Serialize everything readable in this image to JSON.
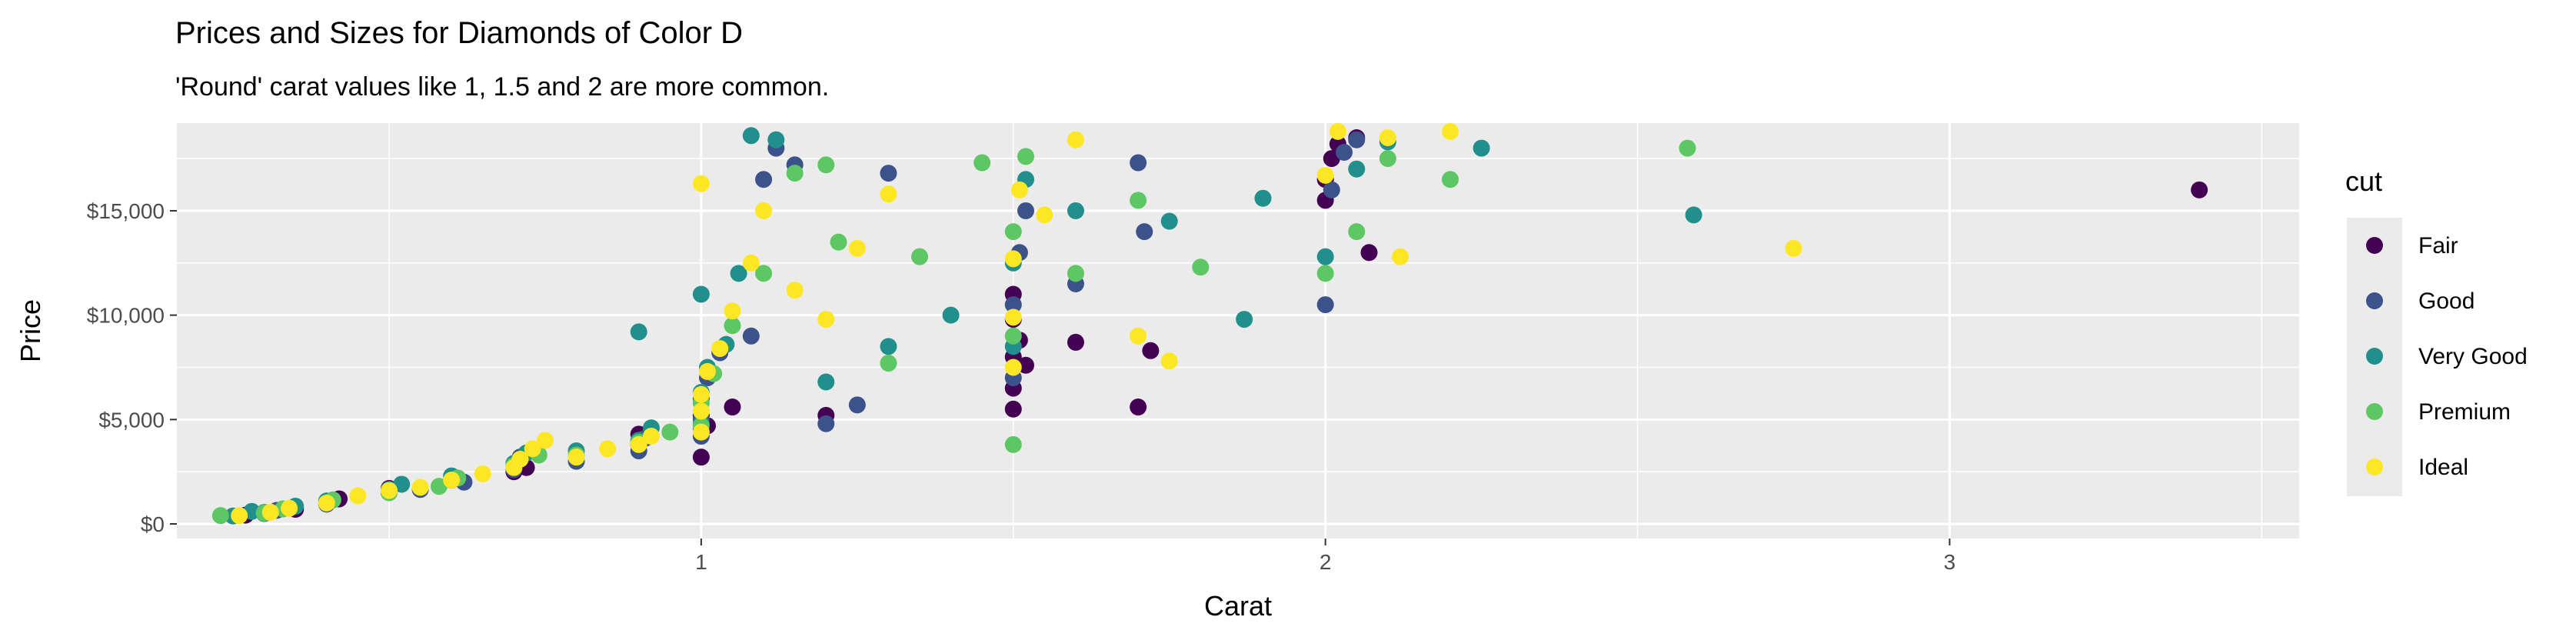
{
  "chart_data": {
    "type": "scatter",
    "title": "Prices and Sizes for Diamonds of Color D",
    "subtitle": "'Round' carat values like 1, 1.5 and 2 are more common.",
    "xlabel": "Carat",
    "ylabel": "Price",
    "xlim": [
      0.16,
      3.56
    ],
    "ylim": [
      -700,
      19200
    ],
    "x_ticks": [
      1,
      2,
      3
    ],
    "x_tick_labels": [
      "1",
      "2",
      "3"
    ],
    "y_ticks": [
      0,
      5000,
      10000,
      15000
    ],
    "y_tick_labels": [
      "$0",
      "$5,000",
      "$10,000",
      "$15,000"
    ],
    "grid": true,
    "legend": {
      "title": "cut",
      "position": "right",
      "items": [
        "Fair",
        "Good",
        "Very Good",
        "Premium",
        "Ideal"
      ]
    },
    "colors": {
      "Fair": "#440154",
      "Good": "#3B528B",
      "Very Good": "#21908C",
      "Premium": "#5DC863",
      "Ideal": "#FDE725"
    },
    "series": [
      {
        "name": "Fair",
        "points": [
          [
            0.27,
            420
          ],
          [
            0.35,
            700
          ],
          [
            0.42,
            1200
          ],
          [
            0.5,
            1700
          ],
          [
            0.6,
            2100
          ],
          [
            0.7,
            2500
          ],
          [
            0.71,
            3000
          ],
          [
            0.72,
            2700
          ],
          [
            0.9,
            3800
          ],
          [
            0.9,
            4300
          ],
          [
            1.0,
            3200
          ],
          [
            1.0,
            4500
          ],
          [
            1.0,
            5200
          ],
          [
            1.01,
            4700
          ],
          [
            1.05,
            5600
          ],
          [
            1.2,
            5200
          ],
          [
            1.5,
            5500
          ],
          [
            1.5,
            6500
          ],
          [
            1.5,
            8000
          ],
          [
            1.51,
            8800
          ],
          [
            1.52,
            7600
          ],
          [
            1.5,
            9800
          ],
          [
            1.5,
            11000
          ],
          [
            1.6,
            8700
          ],
          [
            1.7,
            5600
          ],
          [
            1.72,
            8300
          ],
          [
            2.0,
            15500
          ],
          [
            2.0,
            16500
          ],
          [
            2.01,
            17500
          ],
          [
            2.02,
            18200
          ],
          [
            2.07,
            13000
          ],
          [
            2.05,
            18500
          ],
          [
            3.4,
            16000
          ]
        ]
      },
      {
        "name": "Good",
        "points": [
          [
            0.3,
            500
          ],
          [
            0.32,
            650
          ],
          [
            0.4,
            950
          ],
          [
            0.5,
            1500
          ],
          [
            0.55,
            1650
          ],
          [
            0.62,
            2000
          ],
          [
            0.7,
            2600
          ],
          [
            0.71,
            3200
          ],
          [
            0.8,
            3000
          ],
          [
            0.9,
            3500
          ],
          [
            0.91,
            4100
          ],
          [
            1.0,
            4200
          ],
          [
            1.0,
            5000
          ],
          [
            1.0,
            6000
          ],
          [
            1.01,
            7000
          ],
          [
            1.03,
            8200
          ],
          [
            1.08,
            9000
          ],
          [
            1.1,
            16500
          ],
          [
            1.12,
            18000
          ],
          [
            1.15,
            17200
          ],
          [
            1.2,
            4800
          ],
          [
            1.25,
            5700
          ],
          [
            1.3,
            16800
          ],
          [
            1.5,
            7000
          ],
          [
            1.5,
            10500
          ],
          [
            1.51,
            13000
          ],
          [
            1.52,
            15000
          ],
          [
            1.6,
            11500
          ],
          [
            1.7,
            17300
          ],
          [
            1.71,
            14000
          ],
          [
            2.0,
            10500
          ],
          [
            2.01,
            16000
          ],
          [
            2.03,
            17800
          ],
          [
            2.05,
            18400
          ]
        ]
      },
      {
        "name": "Very Good",
        "points": [
          [
            0.25,
            380
          ],
          [
            0.28,
            600
          ],
          [
            0.3,
            550
          ],
          [
            0.35,
            850
          ],
          [
            0.4,
            1100
          ],
          [
            0.5,
            1650
          ],
          [
            0.52,
            1900
          ],
          [
            0.6,
            2300
          ],
          [
            0.7,
            2900
          ],
          [
            0.72,
            3400
          ],
          [
            0.8,
            3500
          ],
          [
            0.9,
            4000
          ],
          [
            0.9,
            9200
          ],
          [
            0.92,
            4600
          ],
          [
            1.0,
            4800
          ],
          [
            1.0,
            6300
          ],
          [
            1.0,
            11000
          ],
          [
            1.01,
            7500
          ],
          [
            1.04,
            8600
          ],
          [
            1.06,
            12000
          ],
          [
            1.08,
            18600
          ],
          [
            1.12,
            18400
          ],
          [
            1.2,
            6800
          ],
          [
            1.3,
            8500
          ],
          [
            1.4,
            10000
          ],
          [
            1.5,
            8500
          ],
          [
            1.5,
            12500
          ],
          [
            1.52,
            16500
          ],
          [
            1.6,
            15000
          ],
          [
            1.75,
            14500
          ],
          [
            1.87,
            9800
          ],
          [
            1.9,
            15600
          ],
          [
            2.0,
            12800
          ],
          [
            2.05,
            17000
          ],
          [
            2.1,
            18300
          ],
          [
            2.25,
            18000
          ],
          [
            2.59,
            14800
          ]
        ]
      },
      {
        "name": "Premium",
        "points": [
          [
            0.23,
            400
          ],
          [
            0.3,
            520
          ],
          [
            0.33,
            720
          ],
          [
            0.41,
            1150
          ],
          [
            0.5,
            1500
          ],
          [
            0.58,
            1800
          ],
          [
            0.61,
            2200
          ],
          [
            0.7,
            2800
          ],
          [
            0.74,
            3300
          ],
          [
            0.8,
            3300
          ],
          [
            0.9,
            3900
          ],
          [
            0.95,
            4400
          ],
          [
            1.0,
            4700
          ],
          [
            1.0,
            5800
          ],
          [
            1.02,
            7200
          ],
          [
            1.05,
            9500
          ],
          [
            1.1,
            12000
          ],
          [
            1.15,
            16800
          ],
          [
            1.2,
            17200
          ],
          [
            1.22,
            13500
          ],
          [
            1.3,
            7700
          ],
          [
            1.35,
            12800
          ],
          [
            1.45,
            17300
          ],
          [
            1.5,
            3800
          ],
          [
            1.5,
            9000
          ],
          [
            1.5,
            14000
          ],
          [
            1.52,
            17600
          ],
          [
            1.6,
            12000
          ],
          [
            1.7,
            15500
          ],
          [
            1.8,
            12300
          ],
          [
            2.0,
            12000
          ],
          [
            2.05,
            14000
          ],
          [
            2.1,
            17500
          ],
          [
            2.2,
            16500
          ],
          [
            2.58,
            18000
          ]
        ]
      },
      {
        "name": "Ideal",
        "points": [
          [
            0.26,
            400
          ],
          [
            0.31,
            560
          ],
          [
            0.34,
            750
          ],
          [
            0.4,
            1000
          ],
          [
            0.45,
            1350
          ],
          [
            0.5,
            1600
          ],
          [
            0.55,
            1750
          ],
          [
            0.6,
            2100
          ],
          [
            0.65,
            2400
          ],
          [
            0.7,
            2700
          ],
          [
            0.71,
            3100
          ],
          [
            0.73,
            3600
          ],
          [
            0.75,
            4000
          ],
          [
            0.8,
            3200
          ],
          [
            0.85,
            3600
          ],
          [
            0.9,
            3800
          ],
          [
            0.92,
            4200
          ],
          [
            1.0,
            4400
          ],
          [
            1.0,
            5400
          ],
          [
            1.0,
            6200
          ],
          [
            1.0,
            16300
          ],
          [
            1.01,
            7300
          ],
          [
            1.03,
            8400
          ],
          [
            1.05,
            10200
          ],
          [
            1.08,
            12500
          ],
          [
            1.1,
            15000
          ],
          [
            1.15,
            11200
          ],
          [
            1.2,
            9800
          ],
          [
            1.25,
            13200
          ],
          [
            1.3,
            15800
          ],
          [
            1.5,
            7500
          ],
          [
            1.5,
            9900
          ],
          [
            1.5,
            12700
          ],
          [
            1.51,
            16000
          ],
          [
            1.55,
            14800
          ],
          [
            1.6,
            18400
          ],
          [
            1.7,
            9000
          ],
          [
            1.75,
            7800
          ],
          [
            2.0,
            16700
          ],
          [
            2.02,
            18800
          ],
          [
            2.1,
            18500
          ],
          [
            2.12,
            12800
          ],
          [
            2.2,
            18800
          ],
          [
            2.75,
            13200
          ]
        ]
      }
    ]
  }
}
